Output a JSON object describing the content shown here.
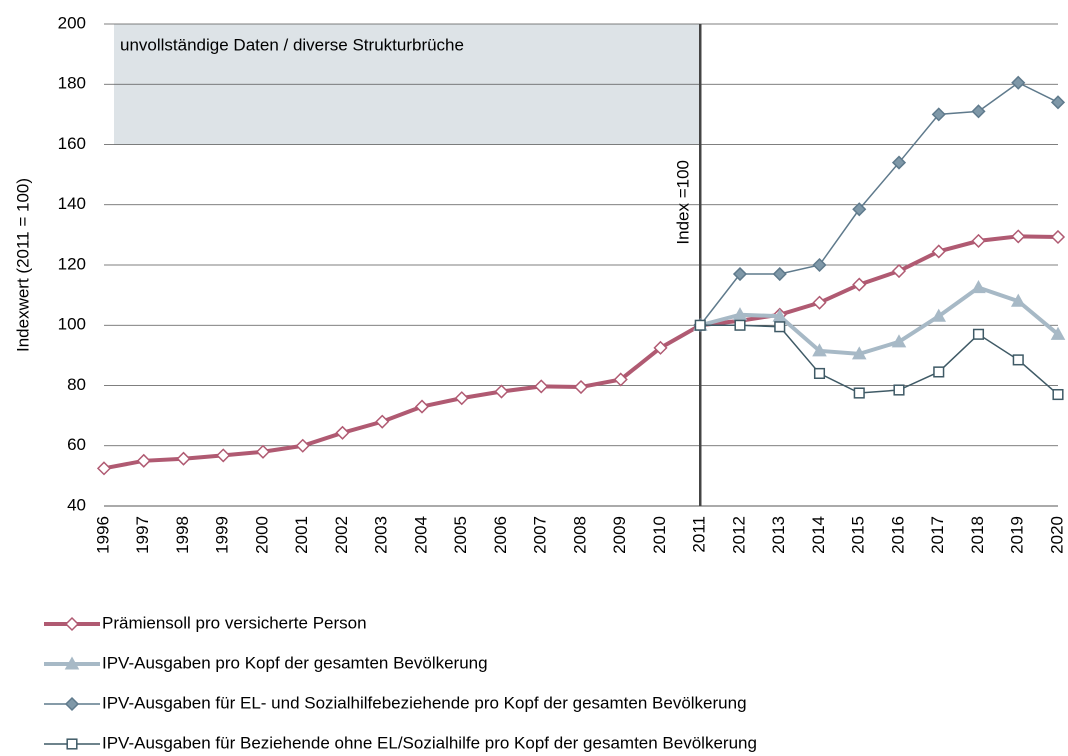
{
  "chart_data": {
    "type": "line",
    "ylabel": "Indexwert (2011 = 100)",
    "x": [
      1996,
      1997,
      1998,
      1999,
      2000,
      2001,
      2002,
      2003,
      2004,
      2005,
      2006,
      2007,
      2008,
      2009,
      2010,
      2011,
      2012,
      2013,
      2014,
      2015,
      2016,
      2017,
      2018,
      2019,
      2020
    ],
    "xlim": [
      1996,
      2020
    ],
    "ylim": [
      40,
      200
    ],
    "yticks": [
      40,
      60,
      80,
      100,
      120,
      140,
      160,
      180,
      200
    ],
    "grid": true,
    "shade": {
      "x": [
        1996,
        2011
      ],
      "y": [
        160,
        200
      ],
      "label": "unvollständige Daten / diverse Strukturbrüche",
      "color": "#dde3e7"
    },
    "vline": {
      "x": 2011,
      "label": "Index =100",
      "color": "#444444"
    },
    "series": [
      {
        "name": "Prämiensoll pro versicherte Person",
        "color": "#b05a72",
        "marker": "diamond",
        "marker_fill": "#ffffff",
        "width": 4,
        "values": [
          52.5,
          55,
          55.7,
          56.8,
          58,
          60,
          64.3,
          68,
          73,
          75.8,
          78,
          79.7,
          79.5,
          82,
          92.5,
          100,
          101.5,
          103.5,
          107.5,
          113.5,
          118,
          124.5,
          128,
          129.5,
          129.3
        ]
      },
      {
        "name": "IPV-Ausgaben pro Kopf der gesamten Bevölkerung",
        "color": "#a7b9c6",
        "marker": "triangle",
        "marker_fill": "#a7b9c6",
        "width": 4,
        "values": [
          null,
          null,
          null,
          null,
          null,
          null,
          null,
          null,
          null,
          null,
          null,
          null,
          null,
          null,
          null,
          100,
          103.5,
          103,
          91.5,
          90.5,
          94.5,
          103,
          112.5,
          108,
          97
        ]
      },
      {
        "name": "IPV-Ausgaben für EL- und Sozialhilfebeziehende pro Kopf der gesamten Bevölkerung",
        "color": "#5f7a8c",
        "marker": "diamond",
        "marker_fill": "#7f98a8",
        "width": 1.5,
        "values": [
          null,
          null,
          null,
          null,
          null,
          null,
          null,
          null,
          null,
          null,
          null,
          null,
          null,
          null,
          null,
          100,
          117,
          117,
          120,
          138.5,
          154,
          170,
          171,
          180.5,
          174
        ]
      },
      {
        "name": "IPV-Ausgaben für Beziehende ohne EL/Sozialhilfe pro Kopf der gesamten Bevölkerung",
        "color": "#3f5a66",
        "marker": "square",
        "marker_fill": "#ffffff",
        "width": 1.5,
        "values": [
          null,
          null,
          null,
          null,
          null,
          null,
          null,
          null,
          null,
          null,
          null,
          null,
          null,
          null,
          null,
          100,
          100,
          99.5,
          84,
          77.5,
          78.5,
          84.5,
          97,
          88.5,
          77
        ]
      }
    ]
  }
}
